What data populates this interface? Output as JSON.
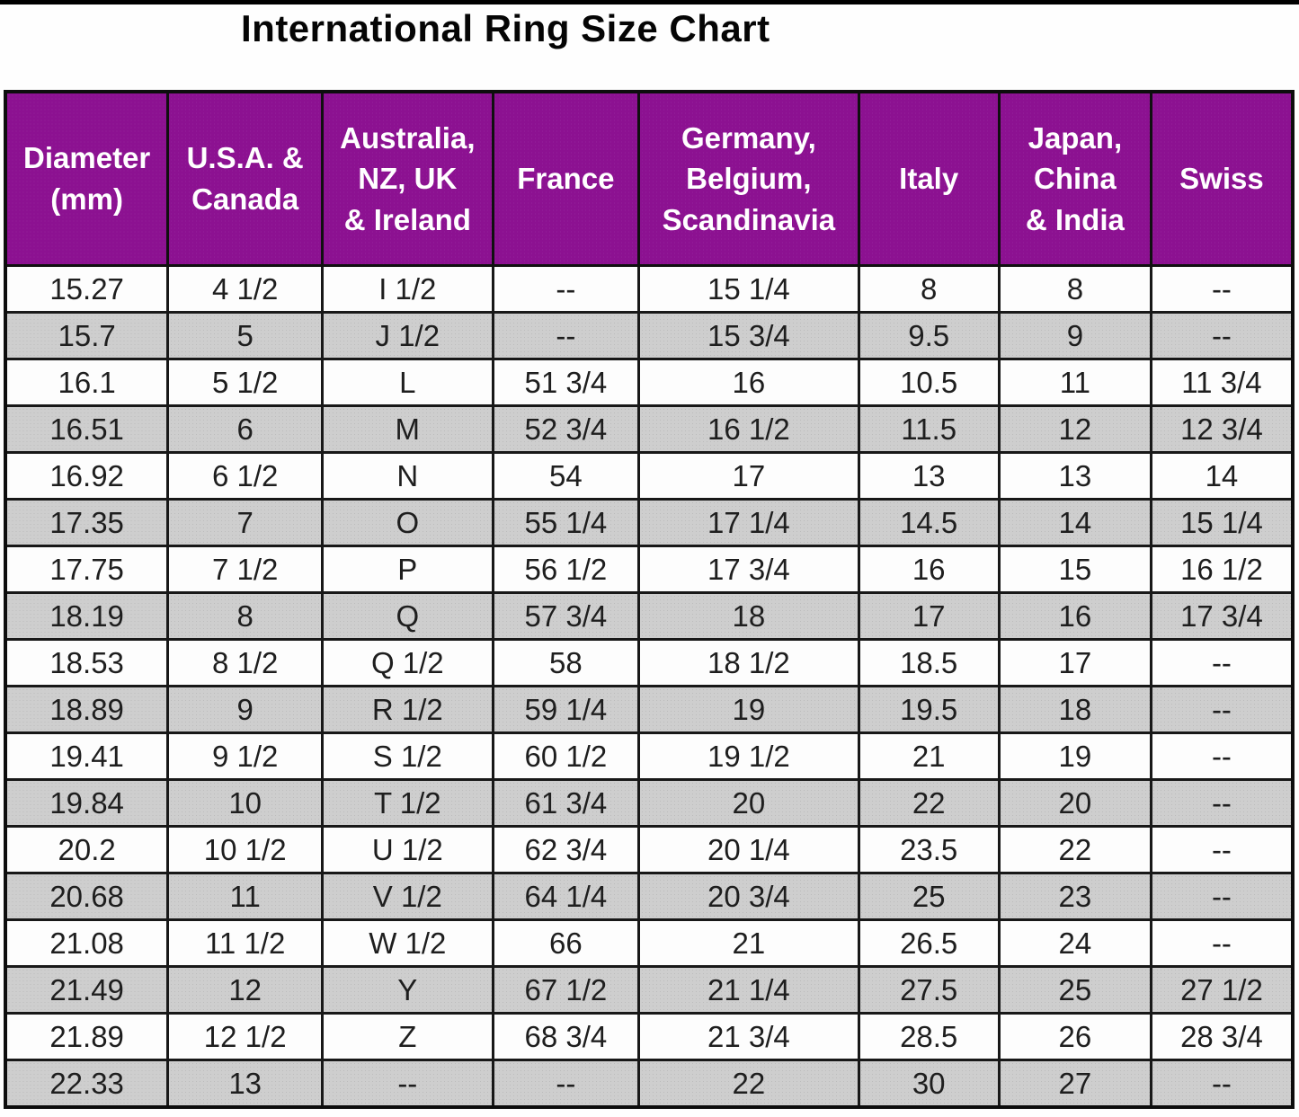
{
  "title": "International Ring Size Chart",
  "colors": {
    "header_bg": "#8C1191",
    "header_text": "#FFFFFF",
    "row_white_bg": "#FDFDFD",
    "row_gray_bg": "#CECECE",
    "border": "#101010",
    "top_bar": "#000000",
    "title_text": "#050505",
    "cell_text": "#1E1E1E"
  },
  "chart_data": {
    "type": "table",
    "title": "International Ring Size Chart",
    "columns": [
      "Diameter (mm)",
      "U.S.A. & Canada",
      "Australia, NZ, UK & Ireland",
      "France",
      "Germany, Belgium, Scandinavia",
      "Italy",
      "Japan, China & India",
      "Swiss"
    ],
    "header_display": [
      "Diameter\n(mm)",
      "U.S.A. &\nCanada",
      "Australia,\nNZ, UK\n& Ireland",
      "France",
      "Germany,\nBelgium,\nScandinavia",
      "Italy",
      "Japan,\nChina\n& India",
      "Swiss"
    ],
    "col_widths_pct": [
      12.6,
      12.0,
      13.25,
      11.35,
      17.15,
      10.9,
      11.8,
      10.95
    ],
    "rows": [
      [
        "15.27",
        "4 1/2",
        "I 1/2",
        "--",
        "15 1/4",
        "8",
        "8",
        "--"
      ],
      [
        "15.7",
        "5",
        "J 1/2",
        "--",
        "15 3/4",
        "9.5",
        "9",
        "--"
      ],
      [
        "16.1",
        "5 1/2",
        "L",
        "51 3/4",
        "16",
        "10.5",
        "11",
        "11 3/4"
      ],
      [
        "16.51",
        "6",
        "M",
        "52 3/4",
        "16 1/2",
        "11.5",
        "12",
        "12 3/4"
      ],
      [
        "16.92",
        "6 1/2",
        "N",
        "54",
        "17",
        "13",
        "13",
        "14"
      ],
      [
        "17.35",
        "7",
        "O",
        "55 1/4",
        "17 1/4",
        "14.5",
        "14",
        "15 1/4"
      ],
      [
        "17.75",
        "7 1/2",
        "P",
        "56 1/2",
        "17 3/4",
        "16",
        "15",
        "16 1/2"
      ],
      [
        "18.19",
        "8",
        "Q",
        "57 3/4",
        "18",
        "17",
        "16",
        "17 3/4"
      ],
      [
        "18.53",
        "8 1/2",
        "Q 1/2",
        "58",
        "18 1/2",
        "18.5",
        "17",
        "--"
      ],
      [
        "18.89",
        "9",
        "R 1/2",
        "59 1/4",
        "19",
        "19.5",
        "18",
        "--"
      ],
      [
        "19.41",
        "9 1/2",
        "S 1/2",
        "60 1/2",
        "19 1/2",
        "21",
        "19",
        "--"
      ],
      [
        "19.84",
        "10",
        "T 1/2",
        "61 3/4",
        "20",
        "22",
        "20",
        "--"
      ],
      [
        "20.2",
        "10 1/2",
        "U 1/2",
        "62 3/4",
        "20 1/4",
        "23.5",
        "22",
        "--"
      ],
      [
        "20.68",
        "11",
        "V 1/2",
        "64 1/4",
        "20 3/4",
        "25",
        "23",
        "--"
      ],
      [
        "21.08",
        "11 1/2",
        "W 1/2",
        "66",
        "21",
        "26.5",
        "24",
        "--"
      ],
      [
        "21.49",
        "12",
        "Y",
        "67 1/2",
        "21 1/4",
        "27.5",
        "25",
        "27 1/2"
      ],
      [
        "21.89",
        "12 1/2",
        "Z",
        "68 3/4",
        "21 3/4",
        "28.5",
        "26",
        "28 3/4"
      ],
      [
        "22.33",
        "13",
        "--",
        "--",
        "22",
        "30",
        "27",
        "--"
      ]
    ],
    "layout_hints": {
      "row_shading": "alternating, odd rows white, even rows halftone gray",
      "header_style": "purple background, white bold multi-line labels",
      "grid": "black solid borders on all cells"
    }
  }
}
